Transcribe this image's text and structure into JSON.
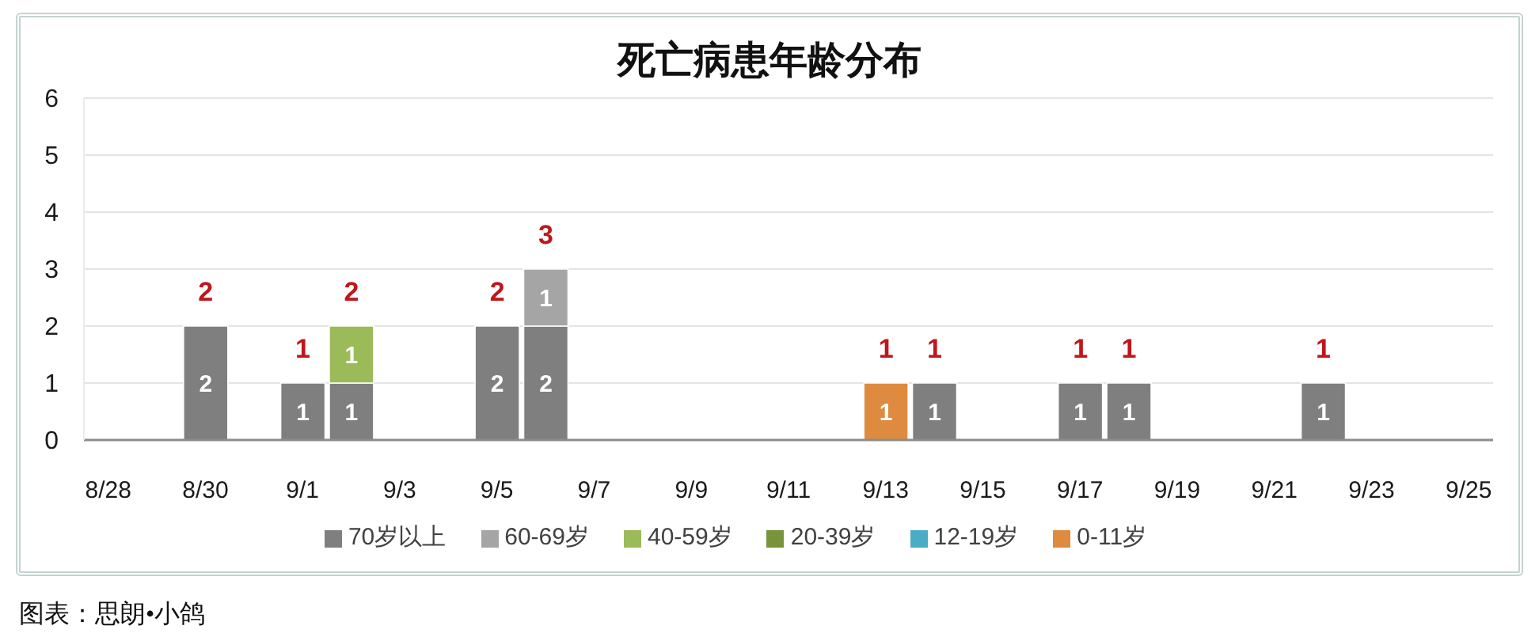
{
  "chart_data": {
    "type": "bar",
    "title": "死亡病患年龄分布",
    "categories": [
      "8/28",
      null,
      "8/30",
      null,
      "9/1",
      null,
      "9/3",
      null,
      "9/5",
      null,
      "9/7",
      null,
      "9/9",
      null,
      "9/11",
      null,
      "9/13",
      null,
      "9/15",
      null,
      "9/17",
      null,
      "9/19",
      null,
      "9/21",
      null,
      "9/23",
      null,
      "9/25"
    ],
    "series": [
      {
        "name": "70岁以上",
        "color": "#7f7f7f",
        "values": [
          null,
          null,
          2,
          null,
          1,
          1,
          null,
          null,
          2,
          2,
          null,
          null,
          null,
          null,
          null,
          null,
          null,
          1,
          null,
          null,
          1,
          1,
          null,
          null,
          null,
          1,
          null,
          null,
          null
        ]
      },
      {
        "name": "60-69岁",
        "color": "#a5a5a5",
        "values": [
          null,
          null,
          null,
          null,
          null,
          null,
          null,
          null,
          null,
          1,
          null,
          null,
          null,
          null,
          null,
          null,
          null,
          null,
          null,
          null,
          null,
          null,
          null,
          null,
          null,
          null,
          null,
          null,
          null
        ]
      },
      {
        "name": "40-59岁",
        "color": "#9bbb59",
        "values": [
          null,
          null,
          null,
          null,
          null,
          1,
          null,
          null,
          null,
          null,
          null,
          null,
          null,
          null,
          null,
          null,
          null,
          null,
          null,
          null,
          null,
          null,
          null,
          null,
          null,
          null,
          null,
          null,
          null
        ]
      },
      {
        "name": "20-39岁",
        "color": "#77933c",
        "values": [
          null,
          null,
          null,
          null,
          null,
          null,
          null,
          null,
          null,
          null,
          null,
          null,
          null,
          null,
          null,
          null,
          null,
          null,
          null,
          null,
          null,
          null,
          null,
          null,
          null,
          null,
          null,
          null,
          null
        ]
      },
      {
        "name": "12-19岁",
        "color": "#4bacc6",
        "values": [
          null,
          null,
          null,
          null,
          null,
          null,
          null,
          null,
          null,
          null,
          null,
          null,
          null,
          null,
          null,
          null,
          null,
          null,
          null,
          null,
          null,
          null,
          null,
          null,
          null,
          null,
          null,
          null,
          null
        ]
      },
      {
        "name": "0-11岁",
        "color": "#de8a3f",
        "values": [
          null,
          null,
          null,
          null,
          null,
          null,
          null,
          null,
          null,
          null,
          null,
          null,
          null,
          null,
          null,
          null,
          1,
          null,
          null,
          null,
          null,
          null,
          null,
          null,
          null,
          null,
          null,
          null,
          null
        ]
      }
    ],
    "totals": [
      null,
      null,
      "2",
      null,
      "1",
      "2",
      null,
      null,
      "2",
      "3",
      null,
      null,
      null,
      null,
      null,
      null,
      "1",
      "1",
      null,
      null,
      "1",
      "1",
      null,
      null,
      null,
      "1",
      null,
      null,
      null
    ],
    "stacked": true,
    "data_labels": true,
    "ylim": [
      0,
      6
    ],
    "yticks": [
      0,
      1,
      2,
      3,
      4,
      5,
      6
    ],
    "grid": "y",
    "legend": "bottom",
    "annotations": [
      "图表：思朗•小鸽"
    ]
  }
}
